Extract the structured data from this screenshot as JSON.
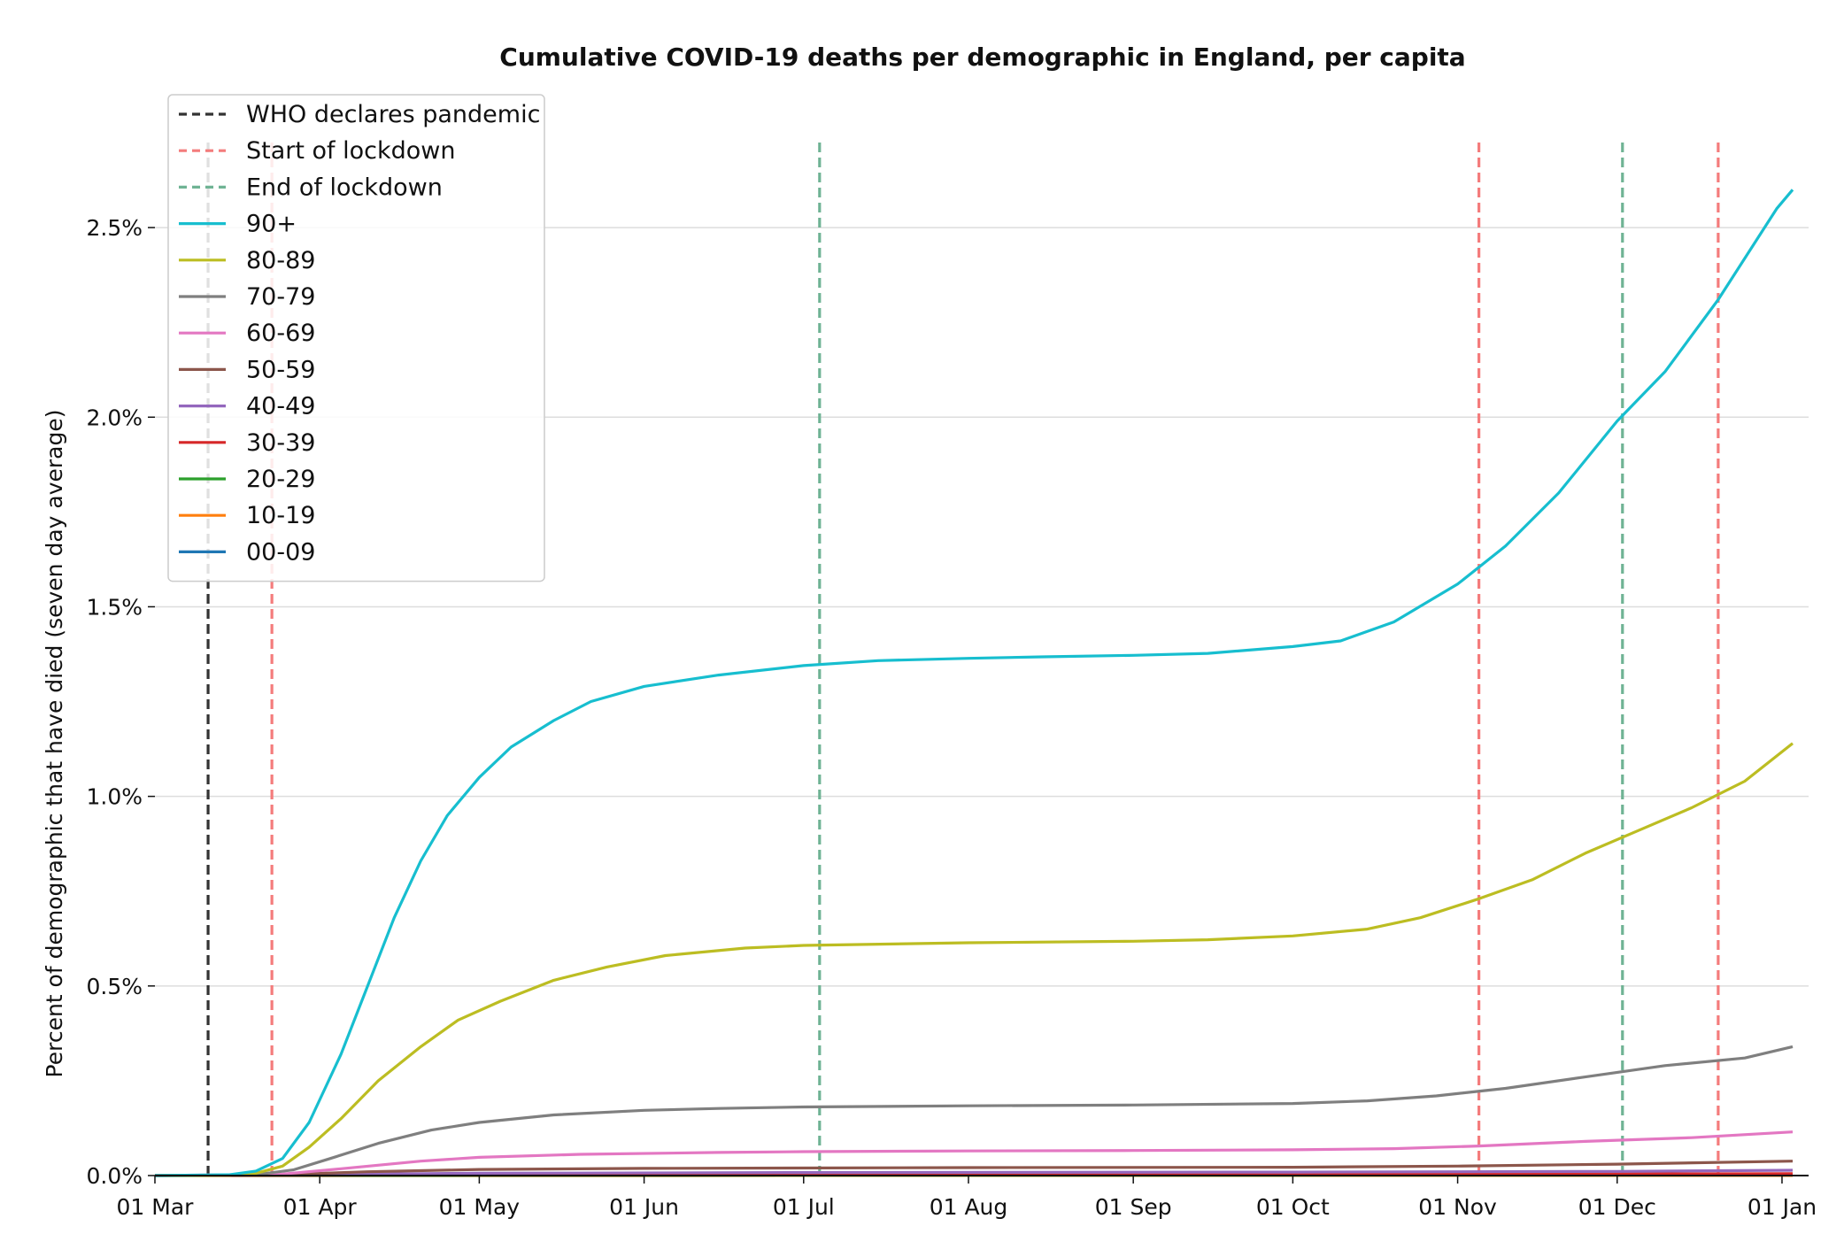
{
  "chart_data": {
    "type": "line",
    "title": "Cumulative COVID-19 deaths per demographic in England, per capita",
    "xlabel": "",
    "ylabel": "Percent of demographic that have died (seven day average)",
    "x_start": "2020-03-01",
    "x_end": "2021-01-06",
    "xlim": [
      "2020-03-01",
      "2021-01-06"
    ],
    "ylim": [
      0,
      2.75
    ],
    "x_ticks": [
      {
        "date": "2020-03-01",
        "label": "01 Mar"
      },
      {
        "date": "2020-04-01",
        "label": "01 Apr"
      },
      {
        "date": "2020-05-01",
        "label": "01 May"
      },
      {
        "date": "2020-06-01",
        "label": "01 Jun"
      },
      {
        "date": "2020-07-01",
        "label": "01 Jul"
      },
      {
        "date": "2020-08-01",
        "label": "01 Aug"
      },
      {
        "date": "2020-09-01",
        "label": "01 Sep"
      },
      {
        "date": "2020-10-01",
        "label": "01 Oct"
      },
      {
        "date": "2020-11-01",
        "label": "01 Nov"
      },
      {
        "date": "2020-12-01",
        "label": "01 Dec"
      },
      {
        "date": "2021-01-01",
        "label": "01 Jan"
      }
    ],
    "y_ticks": [
      {
        "value": 0.0,
        "label": "0.0%"
      },
      {
        "value": 0.5,
        "label": "0.5%"
      },
      {
        "value": 1.0,
        "label": "1.0%"
      },
      {
        "value": 1.5,
        "label": "1.5%"
      },
      {
        "value": 2.0,
        "label": "2.0%"
      },
      {
        "value": 2.5,
        "label": "2.5%"
      }
    ],
    "grid": "horizontal",
    "legend_position": "top-left",
    "events": [
      {
        "name": "WHO declares pandemic",
        "color": "#333333",
        "dates": [
          "2020-03-11"
        ]
      },
      {
        "name": "Start of lockdown",
        "color": "#f47c7c",
        "dates": [
          "2020-03-23",
          "2020-11-05",
          "2020-12-20"
        ]
      },
      {
        "name": "End of lockdown",
        "color": "#6fb394",
        "dates": [
          "2020-07-04",
          "2020-12-02"
        ]
      }
    ],
    "series": [
      {
        "name": "90+",
        "color": "#17becf",
        "points": [
          [
            "2020-03-01",
            0
          ],
          [
            "2020-03-15",
            0.002
          ],
          [
            "2020-03-20",
            0.012
          ],
          [
            "2020-03-25",
            0.045
          ],
          [
            "2020-03-30",
            0.14
          ],
          [
            "2020-04-05",
            0.32
          ],
          [
            "2020-04-10",
            0.5
          ],
          [
            "2020-04-15",
            0.68
          ],
          [
            "2020-04-20",
            0.83
          ],
          [
            "2020-04-25",
            0.95
          ],
          [
            "2020-05-01",
            1.05
          ],
          [
            "2020-05-07",
            1.13
          ],
          [
            "2020-05-15",
            1.2
          ],
          [
            "2020-05-22",
            1.25
          ],
          [
            "2020-06-01",
            1.29
          ],
          [
            "2020-06-15",
            1.32
          ],
          [
            "2020-07-01",
            1.345
          ],
          [
            "2020-07-15",
            1.358
          ],
          [
            "2020-08-01",
            1.364
          ],
          [
            "2020-08-15",
            1.368
          ],
          [
            "2020-09-01",
            1.372
          ],
          [
            "2020-09-15",
            1.377
          ],
          [
            "2020-10-01",
            1.395
          ],
          [
            "2020-10-10",
            1.41
          ],
          [
            "2020-10-20",
            1.46
          ],
          [
            "2020-11-01",
            1.56
          ],
          [
            "2020-11-10",
            1.66
          ],
          [
            "2020-11-20",
            1.8
          ],
          [
            "2020-12-01",
            1.99
          ],
          [
            "2020-12-10",
            2.12
          ],
          [
            "2020-12-20",
            2.31
          ],
          [
            "2020-12-31",
            2.55
          ],
          [
            "2021-01-03",
            2.6
          ]
        ]
      },
      {
        "name": "80-89",
        "color": "#bcbd22",
        "points": [
          [
            "2020-03-01",
            0
          ],
          [
            "2020-03-15",
            0.001
          ],
          [
            "2020-03-20",
            0.006
          ],
          [
            "2020-03-25",
            0.025
          ],
          [
            "2020-03-30",
            0.075
          ],
          [
            "2020-04-05",
            0.15
          ],
          [
            "2020-04-12",
            0.25
          ],
          [
            "2020-04-20",
            0.34
          ],
          [
            "2020-04-27",
            0.41
          ],
          [
            "2020-05-05",
            0.46
          ],
          [
            "2020-05-15",
            0.515
          ],
          [
            "2020-05-25",
            0.55
          ],
          [
            "2020-06-05",
            0.58
          ],
          [
            "2020-06-20",
            0.6
          ],
          [
            "2020-07-01",
            0.607
          ],
          [
            "2020-08-01",
            0.614
          ],
          [
            "2020-09-01",
            0.618
          ],
          [
            "2020-09-15",
            0.622
          ],
          [
            "2020-10-01",
            0.632
          ],
          [
            "2020-10-15",
            0.65
          ],
          [
            "2020-10-25",
            0.68
          ],
          [
            "2020-11-05",
            0.73
          ],
          [
            "2020-11-15",
            0.78
          ],
          [
            "2020-11-25",
            0.85
          ],
          [
            "2020-12-05",
            0.91
          ],
          [
            "2020-12-15",
            0.97
          ],
          [
            "2020-12-25",
            1.04
          ],
          [
            "2021-01-03",
            1.14
          ]
        ]
      },
      {
        "name": "70-79",
        "color": "#7f7f7f",
        "points": [
          [
            "2020-03-01",
            0
          ],
          [
            "2020-03-20",
            0.002
          ],
          [
            "2020-03-27",
            0.015
          ],
          [
            "2020-04-03",
            0.045
          ],
          [
            "2020-04-12",
            0.085
          ],
          [
            "2020-04-22",
            0.12
          ],
          [
            "2020-05-01",
            0.14
          ],
          [
            "2020-05-15",
            0.16
          ],
          [
            "2020-06-01",
            0.172
          ],
          [
            "2020-06-15",
            0.177
          ],
          [
            "2020-07-01",
            0.181
          ],
          [
            "2020-08-01",
            0.184
          ],
          [
            "2020-09-01",
            0.186
          ],
          [
            "2020-10-01",
            0.19
          ],
          [
            "2020-10-15",
            0.197
          ],
          [
            "2020-10-28",
            0.21
          ],
          [
            "2020-11-10",
            0.23
          ],
          [
            "2020-11-25",
            0.26
          ],
          [
            "2020-12-10",
            0.29
          ],
          [
            "2020-12-25",
            0.31
          ],
          [
            "2021-01-03",
            0.34
          ]
        ]
      },
      {
        "name": "60-69",
        "color": "#e377c2",
        "points": [
          [
            "2020-03-01",
            0
          ],
          [
            "2020-03-25",
            0.004
          ],
          [
            "2020-04-05",
            0.018
          ],
          [
            "2020-04-20",
            0.038
          ],
          [
            "2020-05-01",
            0.048
          ],
          [
            "2020-05-20",
            0.056
          ],
          [
            "2020-06-15",
            0.061
          ],
          [
            "2020-07-01",
            0.063
          ],
          [
            "2020-08-01",
            0.065
          ],
          [
            "2020-09-01",
            0.066
          ],
          [
            "2020-10-01",
            0.068
          ],
          [
            "2020-10-20",
            0.071
          ],
          [
            "2020-11-05",
            0.078
          ],
          [
            "2020-11-25",
            0.09
          ],
          [
            "2020-12-15",
            0.1
          ],
          [
            "2021-01-03",
            0.115
          ]
        ]
      },
      {
        "name": "50-59",
        "color": "#8c564b",
        "points": [
          [
            "2020-03-01",
            0
          ],
          [
            "2020-03-25",
            0.002
          ],
          [
            "2020-04-10",
            0.01
          ],
          [
            "2020-05-01",
            0.016
          ],
          [
            "2020-06-01",
            0.019
          ],
          [
            "2020-08-01",
            0.021
          ],
          [
            "2020-10-01",
            0.022
          ],
          [
            "2020-11-01",
            0.025
          ],
          [
            "2020-12-01",
            0.03
          ],
          [
            "2021-01-03",
            0.038
          ]
        ]
      },
      {
        "name": "40-49",
        "color": "#9467bd",
        "points": [
          [
            "2020-03-01",
            0
          ],
          [
            "2020-04-10",
            0.004
          ],
          [
            "2020-05-01",
            0.006
          ],
          [
            "2020-07-01",
            0.008
          ],
          [
            "2020-10-01",
            0.009
          ],
          [
            "2020-12-01",
            0.011
          ],
          [
            "2021-01-03",
            0.014
          ]
        ]
      },
      {
        "name": "30-39",
        "color": "#d62728",
        "points": [
          [
            "2020-03-01",
            0
          ],
          [
            "2020-04-10",
            0.0015
          ],
          [
            "2020-06-01",
            0.0025
          ],
          [
            "2020-10-01",
            0.003
          ],
          [
            "2021-01-03",
            0.005
          ]
        ]
      },
      {
        "name": "20-29",
        "color": "#2ca02c",
        "points": [
          [
            "2020-03-01",
            0
          ],
          [
            "2020-05-01",
            0.0008
          ],
          [
            "2020-10-01",
            0.001
          ],
          [
            "2021-01-03",
            0.0015
          ]
        ]
      },
      {
        "name": "10-19",
        "color": "#ff7f0e",
        "points": [
          [
            "2020-03-01",
            0
          ],
          [
            "2021-01-03",
            0.0003
          ]
        ]
      },
      {
        "name": "00-09",
        "color": "#1f77b4",
        "points": [
          [
            "2020-03-01",
            0
          ],
          [
            "2021-01-03",
            0.0002
          ]
        ]
      }
    ]
  }
}
